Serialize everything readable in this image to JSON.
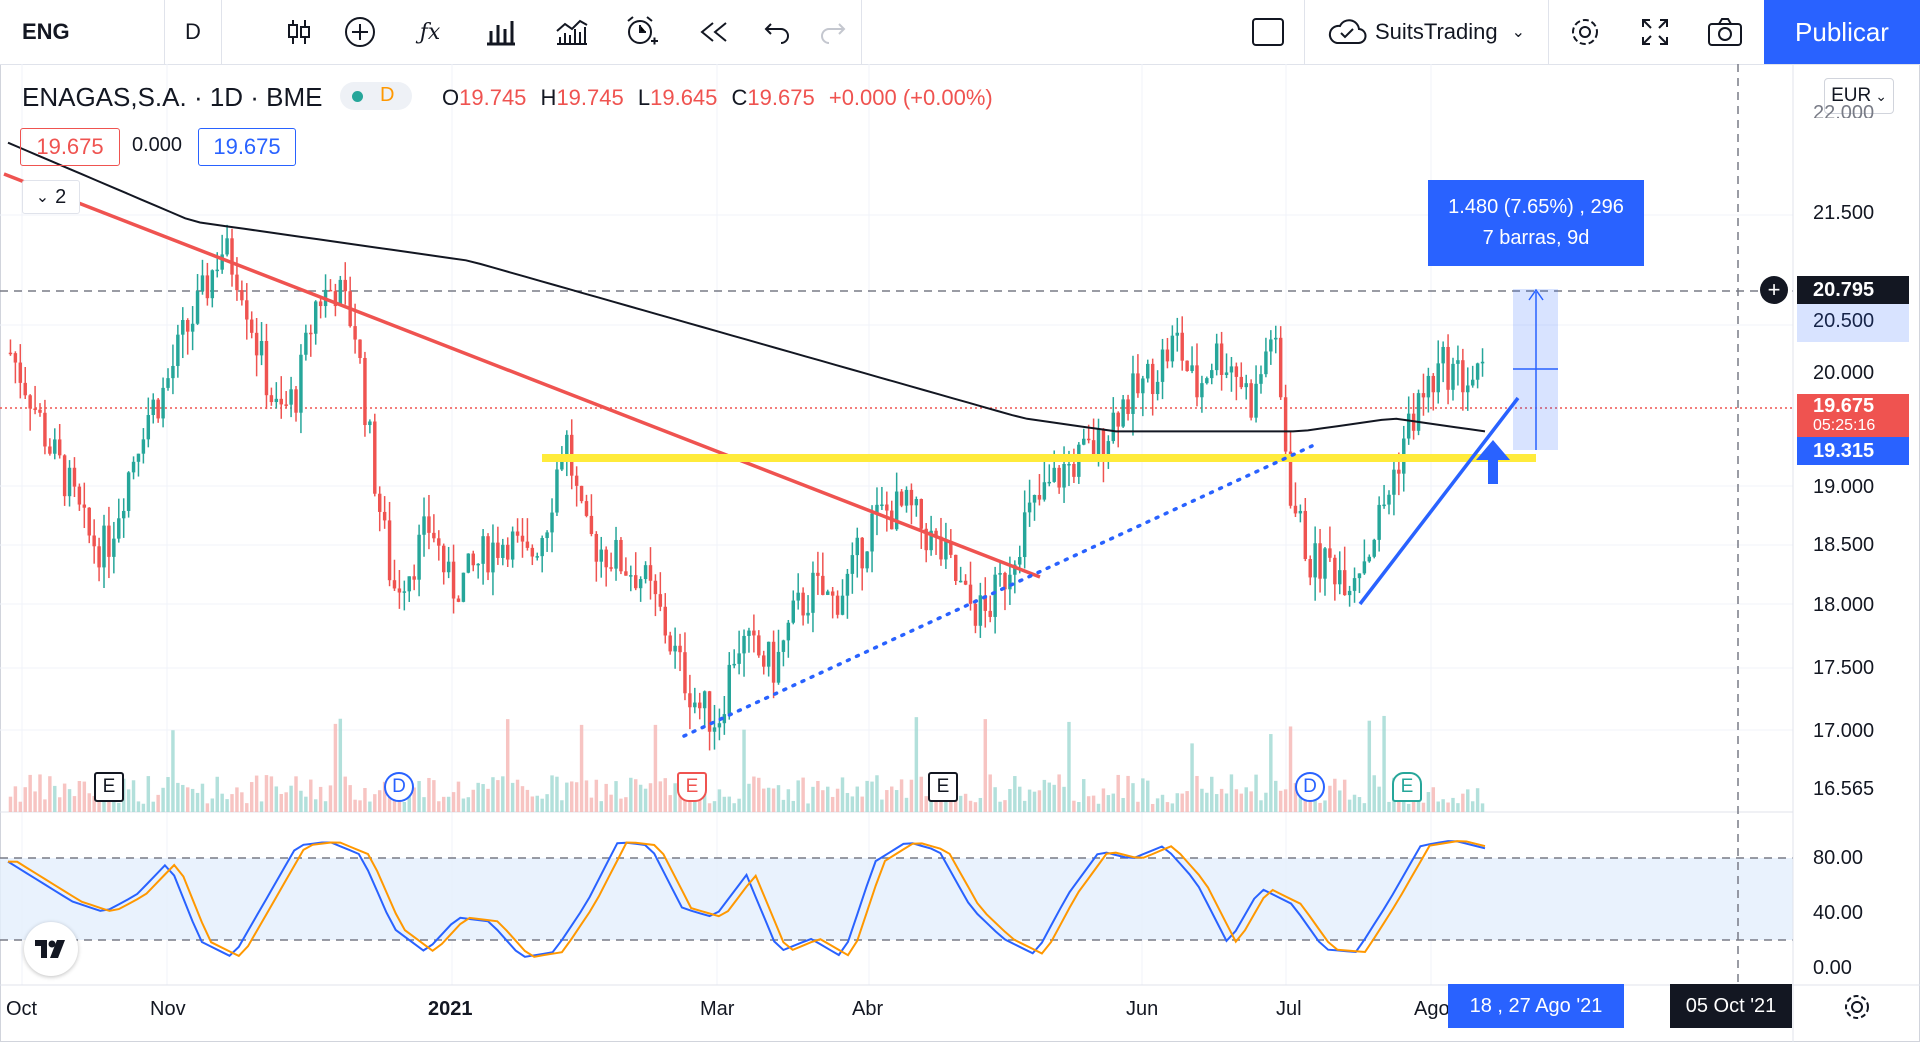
{
  "toolbar": {
    "symbol": "ENG",
    "interval": "D",
    "account": "SuitsTrading",
    "publish_label": "Publicar"
  },
  "legend": {
    "title": "ENAGAS,S.A. · 1D · BME",
    "session_badge": "D",
    "open_key": "O",
    "open": "19.745",
    "high_key": "H",
    "high": "19.745",
    "low_key": "L",
    "low": "19.645",
    "close_key": "C",
    "close": "19.675",
    "change": "+0.000 (+0.00%)",
    "bid": "19.675",
    "spread": "0.000",
    "ask": "19.675",
    "indicator_count": "2"
  },
  "measure_tool": {
    "line1": "1.480 (7.65%) , 296",
    "line2": "7 barras, 9d"
  },
  "price_axis": {
    "currency": "EUR",
    "ticks": [
      "21.500",
      "20.500",
      "20.000",
      "19.000",
      "18.500",
      "18.000",
      "17.500",
      "17.000",
      "16.565"
    ],
    "partial_top": "22.000",
    "labels": [
      {
        "text": "20.795",
        "color": "#2962ff"
      },
      {
        "text": "19.675",
        "color": "#ef5350"
      },
      {
        "text": "19.315",
        "color": "#2962ff"
      }
    ],
    "countdown": "05:25:16",
    "stoch_ticks": [
      "80.00",
      "40.00",
      "0.00"
    ]
  },
  "time_axis": {
    "ticks": [
      "Oct",
      "Nov",
      "2021",
      "Mar",
      "Abr",
      "Jun",
      "Jul",
      "Ago"
    ],
    "range_label": "18 ,  27 Ago '21",
    "cursor_label": "05 Oct '21"
  },
  "events": [
    "E",
    "D",
    "E",
    "E",
    "D",
    "E"
  ],
  "colors": {
    "up": "#26a69a",
    "down": "#ef5350",
    "accent": "#2962ff",
    "trendline": "#ef5350",
    "support": "#ffeb3b",
    "ma": "#131722"
  },
  "chart_data": {
    "type": "candlestick",
    "title": "ENAGAS,S.A. · 1D · BME",
    "ylim": [
      16.4,
      22.1
    ],
    "series": [
      {
        "name": "price",
        "values": [
          19.9,
          19.6,
          19.2,
          18.9,
          18.5,
          18.4,
          18.9,
          19.4,
          19.6,
          20.0,
          20.3,
          20.7,
          20.5,
          19.9,
          19.4,
          19.6,
          20.3,
          20.4,
          20.1,
          19.0,
          18.1,
          18.3,
          18.6,
          18.1,
          18.2,
          18.4,
          18.5,
          18.3,
          18.6,
          19.3,
          18.5,
          18.4,
          18.3,
          18.2,
          17.9,
          17.5,
          17.2,
          17.1,
          17.7,
          17.6,
          17.5,
          17.9,
          18.1,
          18.0,
          18.2,
          18.6,
          18.7,
          18.7,
          18.5,
          18.3,
          18.0,
          17.9,
          18.2,
          18.6,
          18.8,
          19.0,
          19.1,
          19.2,
          19.5,
          19.6,
          19.8,
          20.0,
          19.6,
          19.9,
          19.8,
          19.5,
          20.1,
          18.8,
          18.3,
          18.3,
          18.2,
          18.4,
          18.8,
          19.3,
          19.6,
          19.8,
          19.7,
          19.7
        ]
      },
      {
        "name": "ma",
        "values": [
          21.5,
          21.2,
          20.9,
          20.8,
          20.7,
          20.6,
          20.4,
          20.2,
          20.0,
          19.8,
          19.6,
          19.4,
          19.3,
          19.3,
          19.3,
          19.4,
          19.3
        ]
      },
      {
        "name": "stoch",
        "values": [
          80,
          65,
          50,
          42,
          55,
          80,
          20,
          8,
          50,
          92,
          95,
          85,
          30,
          12,
          38,
          35,
          8,
          12,
          48,
          95,
          92,
          45,
          38,
          70,
          12,
          22,
          8,
          80,
          95,
          88,
          45,
          22,
          10,
          55,
          88,
          82,
          92,
          65,
          18,
          60,
          48,
          14,
          12,
          50,
          92,
          96,
          90
        ]
      }
    ],
    "stoch_levels": [
      80,
      20
    ],
    "stoch_ylim": [
      0,
      100
    ]
  }
}
